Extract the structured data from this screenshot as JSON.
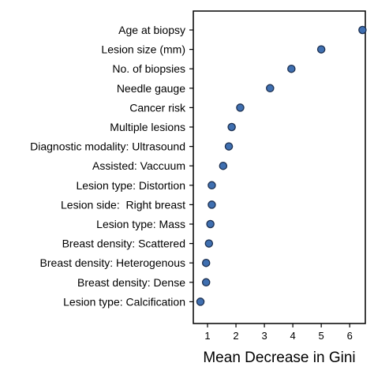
{
  "chart_data": {
    "type": "scatter",
    "orientation": "horizontal-dot",
    "xlabel": "Mean Decrease in Gini",
    "xlim": [
      0.5,
      6.55
    ],
    "xticks": [
      1,
      2,
      3,
      4,
      5,
      6
    ],
    "grid": false,
    "marker_color": "#3f6fb0",
    "categories": [
      "Age at biopsy",
      "Lesion size (mm)",
      "No. of biopsies",
      "Needle gauge",
      "Cancer risk",
      "Multiple lesions",
      "Diagnostic modality: Ultrasound",
      "Assisted: Vaccuum",
      "Lesion type: Distortion",
      "Lesion side:  Right breast",
      "Lesion type: Mass",
      "Breast density: Scattered",
      "Breast density: Heterogenous",
      "Breast density: Dense",
      "Lesion type: Calcification"
    ],
    "values": [
      6.45,
      5.0,
      3.95,
      3.2,
      2.15,
      1.85,
      1.75,
      1.55,
      1.15,
      1.15,
      1.1,
      1.05,
      0.95,
      0.95,
      0.75
    ]
  }
}
